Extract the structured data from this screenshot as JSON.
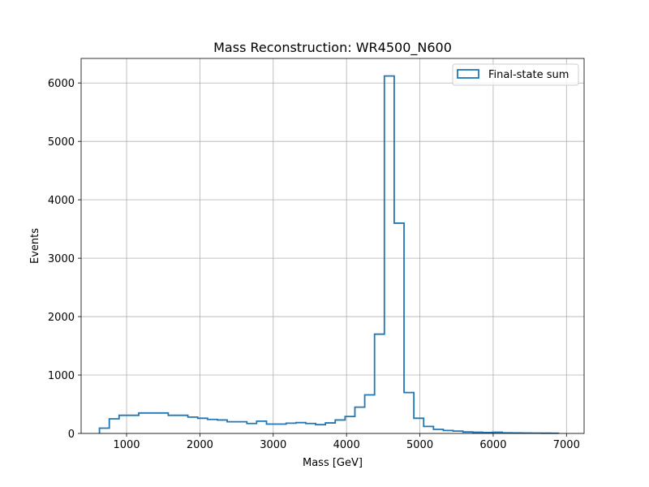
{
  "chart_data": {
    "type": "histogram",
    "title": "Mass Reconstruction: WR4500_N600",
    "xlabel": "Mass [GeV]",
    "ylabel": "Events",
    "xlim": [
      380,
      7240
    ],
    "ylim": [
      0,
      6420
    ],
    "xticks": [
      1000,
      2000,
      3000,
      4000,
      5000,
      6000,
      7000
    ],
    "yticks": [
      0,
      1000,
      2000,
      3000,
      4000,
      5000,
      6000
    ],
    "grid": true,
    "legend_position": "top-right",
    "series": [
      {
        "name": "Final-state sum",
        "color": "#1f77b4",
        "style": "step",
        "bin_edges": [
          630,
          764,
          898,
          1032,
          1166,
          1300,
          1434,
          1568,
          1702,
          1836,
          1970,
          2104,
          2238,
          2372,
          2506,
          2640,
          2774,
          2908,
          3042,
          3176,
          3310,
          3444,
          3578,
          3712,
          3846,
          3980,
          4114,
          4248,
          4382,
          4516,
          4650,
          4784,
          4918,
          5052,
          5186,
          5320,
          5454,
          5588,
          5722,
          5856,
          5990,
          6124,
          6258,
          6392,
          6526,
          6660,
          6794,
          6890
        ],
        "values": [
          90,
          250,
          310,
          310,
          350,
          350,
          350,
          310,
          310,
          280,
          260,
          240,
          230,
          200,
          200,
          170,
          210,
          160,
          160,
          175,
          185,
          170,
          150,
          180,
          230,
          290,
          450,
          660,
          1700,
          6120,
          3600,
          700,
          260,
          120,
          70,
          50,
          40,
          25,
          20,
          15,
          20,
          10,
          8,
          6,
          5,
          4,
          3
        ]
      }
    ]
  }
}
